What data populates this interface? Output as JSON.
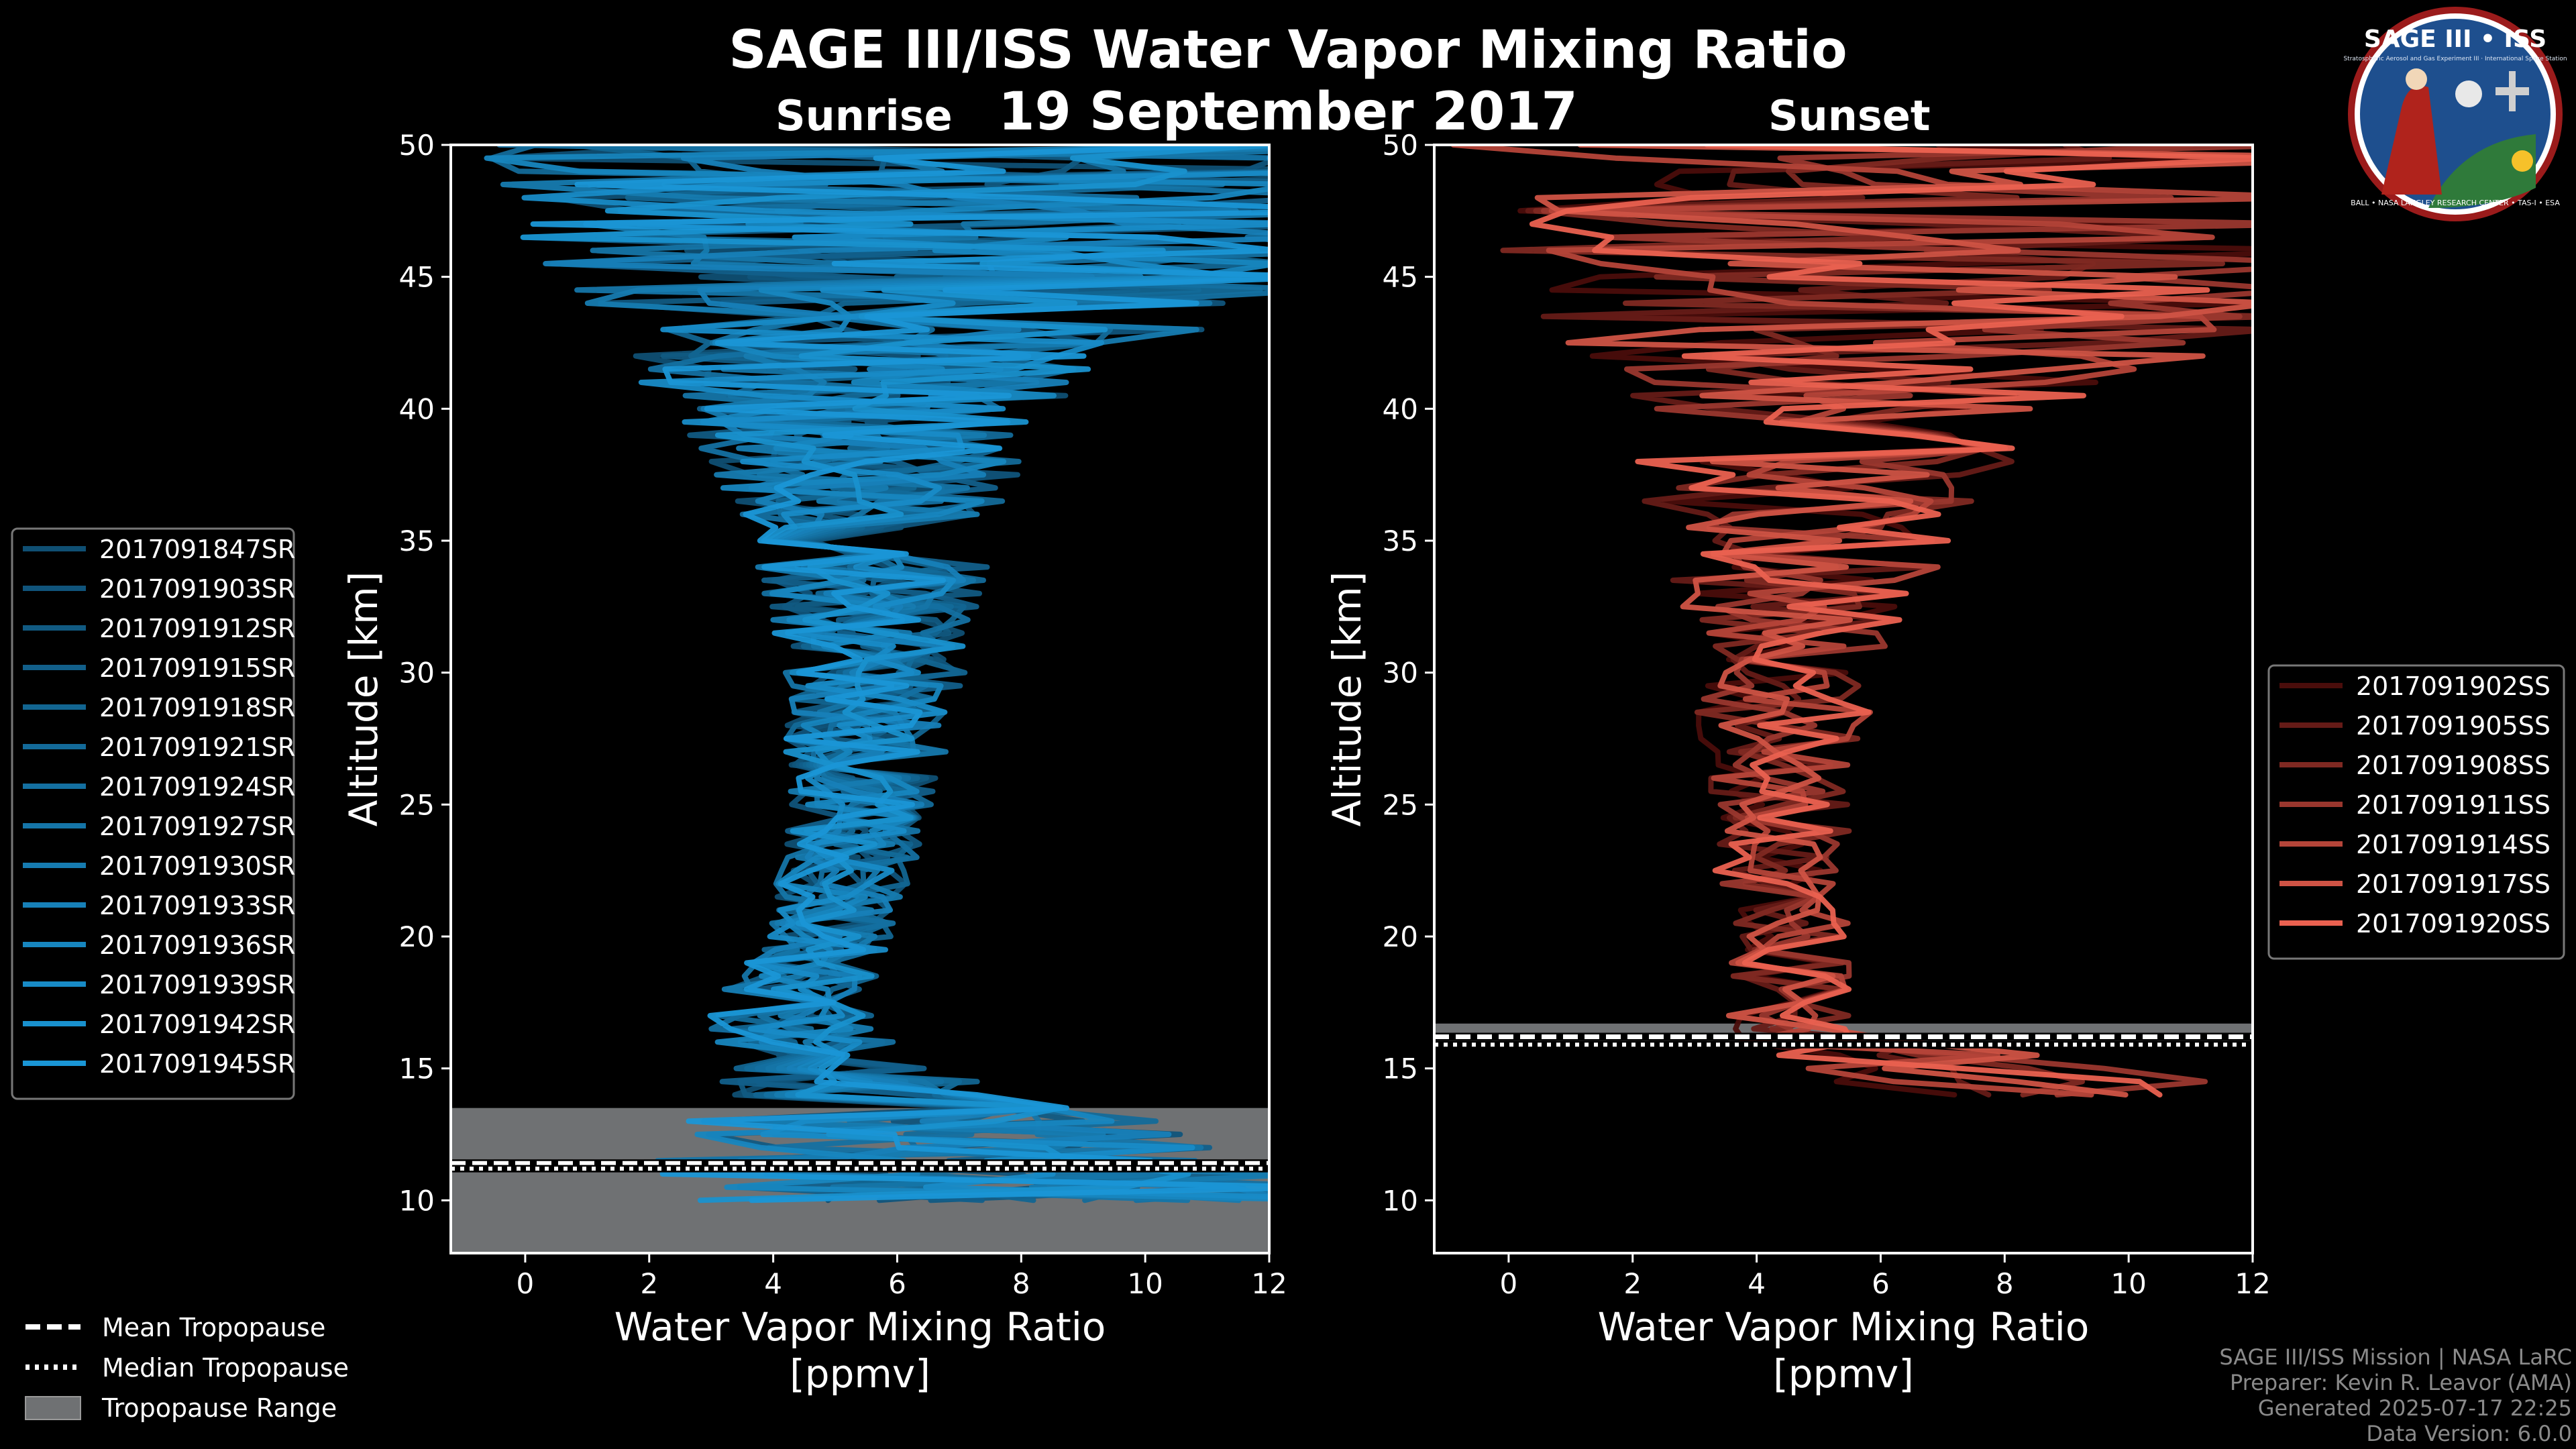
{
  "header": {
    "title": "SAGE III/ISS Water Vapor Mixing Ratio",
    "date": "19 September 2017"
  },
  "logo": {
    "text_top": "SAGE III • ISS",
    "text_sub": "Stratospheric Aerosol and Gas Experiment III · International Space Station",
    "text_ring": "BALL • NASA LANGLEY RESEARCH CENTER • TAS-I • ESA"
  },
  "colors": {
    "background": "#000000",
    "sunrise_light": "#1a96d6",
    "sunrise_dark": "#0f4f73",
    "sunset_light": "#ea6150",
    "sunset_dark": "#4a0d0b",
    "tropopause_fill": "#6f7173"
  },
  "legend_tropopause": {
    "mean": "Mean Tropopause",
    "median": "Median Tropopause",
    "range": "Tropopause Range"
  },
  "credits": {
    "line1": "SAGE III/ISS Mission | NASA LaRC",
    "line2": "Preparer: Kevin R. Leavor (AMA)",
    "line3": "Generated 2025-07-17 22:25",
    "line4": "Data Version: 6.0.0"
  },
  "chart_data": [
    {
      "type": "line",
      "panel": "Sunrise",
      "title": "Sunrise",
      "xlabel": "Water Vapor Mixing Ratio [ppmv]",
      "ylabel": "Altitude [km]",
      "xlim": [
        -1.2,
        12
      ],
      "ylim": [
        8,
        50
      ],
      "xticks": [
        0,
        2,
        4,
        6,
        8,
        10,
        12
      ],
      "yticks": [
        10,
        15,
        20,
        25,
        30,
        35,
        40,
        45,
        50
      ],
      "profile_envelope": {
        "altitude_km": [
          10,
          13,
          15,
          17,
          20,
          25,
          30,
          35,
          40,
          43,
          45,
          50
        ],
        "center_ppmv": [
          8,
          6.2,
          5,
          4.2,
          4.9,
          5.4,
          5.6,
          5.6,
          5.3,
          6,
          7,
          7
        ],
        "spread_ppmv": [
          6,
          4,
          1.6,
          1.4,
          1.0,
          1.2,
          1.5,
          2.0,
          3.0,
          5.0,
          7.0,
          8.0
        ]
      },
      "tropopause": {
        "mean_km": 11.4,
        "median_km": 11.2,
        "range_km": [
          8,
          13.5
        ]
      },
      "legend_position": "left",
      "series": [
        {
          "name": "2017091847SR"
        },
        {
          "name": "2017091903SR"
        },
        {
          "name": "2017091912SR"
        },
        {
          "name": "2017091915SR"
        },
        {
          "name": "2017091918SR"
        },
        {
          "name": "2017091921SR"
        },
        {
          "name": "2017091924SR"
        },
        {
          "name": "2017091927SR"
        },
        {
          "name": "2017091930SR"
        },
        {
          "name": "2017091933SR"
        },
        {
          "name": "2017091936SR"
        },
        {
          "name": "2017091939SR"
        },
        {
          "name": "2017091942SR"
        },
        {
          "name": "2017091945SR"
        }
      ]
    },
    {
      "type": "line",
      "panel": "Sunset",
      "title": "Sunset",
      "xlabel": "Water Vapor Mixing Ratio [ppmv]",
      "ylabel": "Altitude [km]",
      "xlim": [
        -1.2,
        12
      ],
      "ylim": [
        8,
        50
      ],
      "xticks": [
        0,
        2,
        4,
        6,
        8,
        10,
        12
      ],
      "yticks": [
        10,
        15,
        20,
        25,
        30,
        35,
        40,
        45,
        50
      ],
      "profile_envelope": {
        "altitude_km": [
          14,
          15,
          16.5,
          18,
          20,
          25,
          30,
          35,
          40,
          43,
          45,
          50
        ],
        "center_ppmv": [
          9,
          7.5,
          4.5,
          4.6,
          4.5,
          4.3,
          4.5,
          4.7,
          5.3,
          6.5,
          7,
          7
        ],
        "spread_ppmv": [
          4,
          3,
          1.2,
          1.0,
          1.0,
          1.2,
          1.5,
          2.5,
          3.5,
          6.0,
          7.0,
          8.0
        ]
      },
      "tropopause": {
        "mean_km": 16.2,
        "median_km": 15.9,
        "range_km": [
          15.8,
          16.7
        ]
      },
      "legend_position": "right",
      "series": [
        {
          "name": "2017091902SS"
        },
        {
          "name": "2017091905SS"
        },
        {
          "name": "2017091908SS"
        },
        {
          "name": "2017091911SS"
        },
        {
          "name": "2017091914SS"
        },
        {
          "name": "2017091917SS"
        },
        {
          "name": "2017091920SS"
        }
      ]
    }
  ]
}
